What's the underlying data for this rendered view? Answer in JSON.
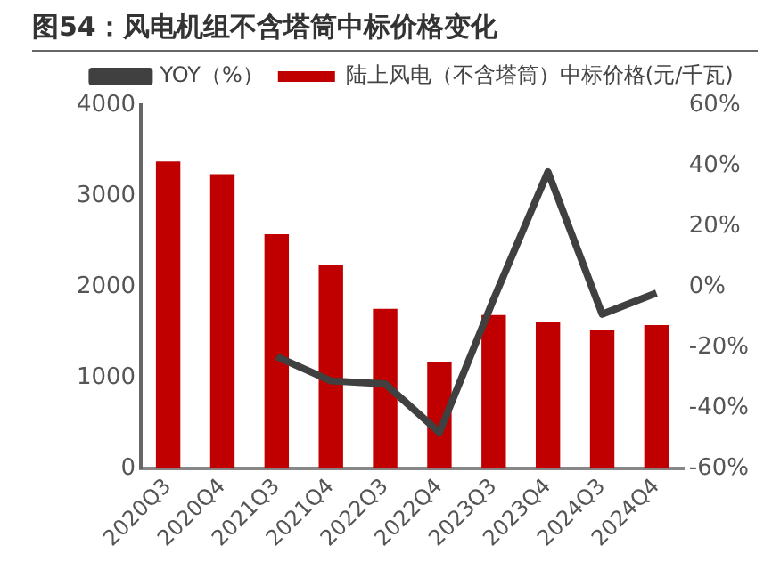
{
  "chart_data": {
    "type": "bar",
    "title": "图54：风电机组不含塔筒中标价格变化",
    "categories": [
      "2020Q3",
      "2020Q4",
      "2021Q3",
      "2021Q4",
      "2022Q3",
      "2022Q4",
      "2023Q3",
      "2023Q4",
      "2024Q3",
      "2024Q4"
    ],
    "series": [
      {
        "name": "陆上风电（不含塔筒）中标价格(元/千瓦)",
        "color": "#c00000",
        "values": [
          3380,
          3240,
          2580,
          2240,
          1760,
          1170,
          1690,
          1610,
          1530,
          1580
        ]
      },
      {
        "name": "YOY（%）",
        "type": "line",
        "axis": "y2",
        "color": "#404040",
        "values": [
          null,
          null,
          -23,
          -31,
          -32,
          -48,
          -4,
          38,
          -9,
          -2
        ]
      }
    ],
    "ylim": [
      0,
      4000
    ],
    "yticks": [
      0,
      1000,
      2000,
      3000,
      4000
    ],
    "y2lim": [
      -60,
      60
    ],
    "y2ticks": [
      {
        "value": -60,
        "label": "-60%"
      },
      {
        "value": -40,
        "label": "-40%"
      },
      {
        "value": -20,
        "label": "-20%"
      },
      {
        "value": 0,
        "label": "0%"
      },
      {
        "value": 20,
        "label": "20%"
      },
      {
        "value": 40,
        "label": "40%"
      },
      {
        "value": 60,
        "label": "60%"
      }
    ],
    "grid": false,
    "legend": "top"
  }
}
